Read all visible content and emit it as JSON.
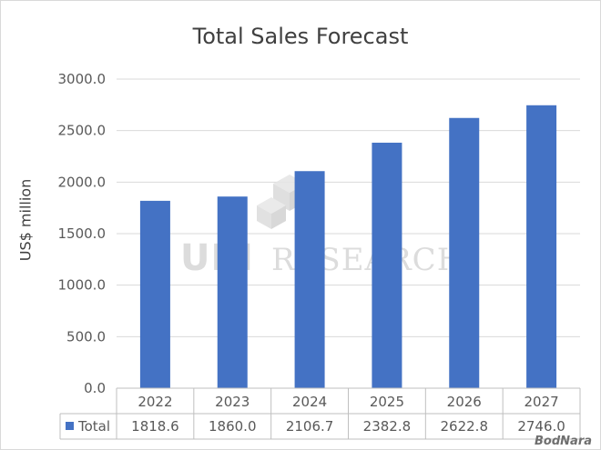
{
  "chart_data": {
    "type": "bar",
    "title": "Total Sales Forecast",
    "ylabel": "US$ million",
    "xlabel": "",
    "categories": [
      "2022",
      "2023",
      "2024",
      "2025",
      "2026",
      "2027"
    ],
    "series": [
      {
        "name": "Total",
        "values": [
          1818.6,
          1860.0,
          2106.7,
          2382.8,
          2622.8,
          2746.0
        ],
        "color": "#4472c4"
      }
    ],
    "ylim": [
      0,
      3000
    ],
    "yticks": [
      "0.0",
      "500.0",
      "1000.0",
      "1500.0",
      "2000.0",
      "2500.0",
      "3000.0"
    ],
    "table_values": [
      "1818.6",
      "1860.0",
      "2106.7",
      "2382.8",
      "2622.8",
      "2746.0"
    ],
    "grid": true,
    "legend": "data-table"
  },
  "watermark": {
    "text": "RESEARCH",
    "logo_text": "UBI"
  },
  "credit": "BodNara"
}
